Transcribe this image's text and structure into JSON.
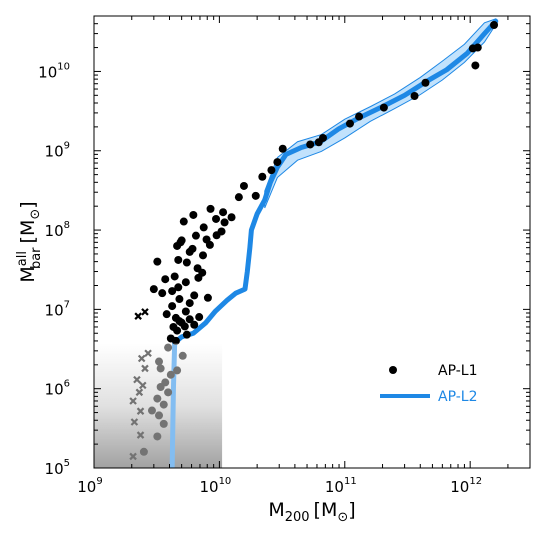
{
  "chart_data": {
    "type": "scatter",
    "xscale": "log",
    "yscale": "log",
    "xlim": [
      1000000000.0,
      3000000000000.0
    ],
    "ylim": [
      100000.0,
      50000000000.0
    ],
    "xlabel": "M",
    "xlabel_sub": "200",
    "xlabel_unit": "[M",
    "xlabel_unit_sub": "⊙",
    "xlabel_unit_end": "]",
    "ylabel": "M",
    "ylabel_sup": "all",
    "ylabel_sub": "bar",
    "ylabel_unit": "[M",
    "ylabel_unit_sub": "⊙",
    "ylabel_unit_end": "]",
    "x_ticks": [
      {
        "value": 1000000000.0,
        "base": "10",
        "exp": "9"
      },
      {
        "value": 10000000000.0,
        "base": "10",
        "exp": "10"
      },
      {
        "value": 100000000000.0,
        "base": "10",
        "exp": "11"
      },
      {
        "value": 1000000000000.0,
        "base": "10",
        "exp": "12"
      }
    ],
    "y_ticks": [
      {
        "value": 100000.0,
        "base": "10",
        "exp": "5"
      },
      {
        "value": 1000000.0,
        "base": "10",
        "exp": "6"
      },
      {
        "value": 10000000.0,
        "base": "10",
        "exp": "7"
      },
      {
        "value": 100000000.0,
        "base": "10",
        "exp": "8"
      },
      {
        "value": 1000000000.0,
        "base": "10",
        "exp": "9"
      },
      {
        "value": 10000000000.0,
        "base": "10",
        "exp": "10"
      }
    ],
    "shaded_region": {
      "x": [
        1000000000.0,
        10500000000.0
      ],
      "y": [
        100000.0,
        3700000.0
      ]
    },
    "legend": {
      "placement": "bottom-right",
      "entries": [
        {
          "label": "AP-L1",
          "marker": "circle",
          "color": "#000000"
        },
        {
          "label": "AP-L2",
          "marker": "line",
          "color": "#1e88e5"
        }
      ]
    },
    "series": [
      {
        "name": "AP-L1",
        "marker": "circle",
        "color": "#000000",
        "points": [
          [
            2500000000.0,
            160000.0
          ],
          [
            3200000000.0,
            250000.0
          ],
          [
            3600000000.0,
            360000.0
          ],
          [
            3300000000.0,
            460000.0
          ],
          [
            2900000000.0,
            530000.0
          ],
          [
            3600000000.0,
            630000.0
          ],
          [
            3200000000.0,
            750000.0
          ],
          [
            3900000000.0,
            900000.0
          ],
          [
            3400000000.0,
            1050000.0
          ],
          [
            3700000000.0,
            1200000.0
          ],
          [
            4100000000.0,
            1500000.0
          ],
          [
            3400000000.0,
            1800000.0
          ],
          [
            4600000000.0,
            1700000.0
          ],
          [
            3300000000.0,
            2200000.0
          ],
          [
            5100000000.0,
            2600000.0
          ],
          [
            3900000000.0,
            3300000.0
          ],
          [
            4500000000.0,
            4000000.0
          ],
          [
            4100000000.0,
            4300000.0
          ],
          [
            5500000000.0,
            4800000.0
          ],
          [
            4600000000.0,
            5400000.0
          ],
          [
            4300000000.0,
            6000000.0
          ],
          [
            5300000000.0,
            6100000.0
          ],
          [
            6300000000.0,
            6400000.0
          ],
          [
            5000000000.0,
            6800000.0
          ],
          [
            4800000000.0,
            7100000.0
          ],
          [
            4500000000.0,
            7800000.0
          ],
          [
            5800000000.0,
            7500000.0
          ],
          [
            6900000000.0,
            8000000.0
          ],
          [
            3800000000.0,
            8700000.0
          ],
          [
            5400000000.0,
            9400000.0
          ],
          [
            4200000000.0,
            11000000.0
          ],
          [
            5800000000.0,
            12000000.0
          ],
          [
            4800000000.0,
            13500000.0
          ],
          [
            6300000000.0,
            15000000.0
          ],
          [
            3500000000.0,
            16000000.0
          ],
          [
            4200000000.0,
            17000000.0
          ],
          [
            8100000000.0,
            14000000.0
          ],
          [
            3000000000.0,
            18000000.0
          ],
          [
            4700000000.0,
            19000000.0
          ],
          [
            5400000000.0,
            22000000.0
          ],
          [
            6800000000.0,
            25000000.0
          ],
          [
            7300000000.0,
            29000000.0
          ],
          [
            3700000000.0,
            24000000.0
          ],
          [
            4400000000.0,
            26000000.0
          ],
          [
            6700000000.0,
            33000000.0
          ],
          [
            5500000000.0,
            39000000.0
          ],
          [
            4700000000.0,
            42000000.0
          ],
          [
            3200000000.0,
            40000000.0
          ],
          [
            7400000000.0,
            48000000.0
          ],
          [
            5800000000.0,
            53000000.0
          ],
          [
            6100000000.0,
            58000000.0
          ],
          [
            4600000000.0,
            63000000.0
          ],
          [
            8400000000.0,
            65000000.0
          ],
          [
            4900000000.0,
            70000000.0
          ],
          [
            5000000000.0,
            74000000.0
          ],
          [
            7900000000.0,
            76000000.0
          ],
          [
            6500000000.0,
            85000000.0
          ],
          [
            9500000000.0,
            86000000.0
          ],
          [
            10400000000.0,
            96000000.0
          ],
          [
            7500000000.0,
            108000000.0
          ],
          [
            11000000000.0,
            125000000.0
          ],
          [
            5200000000.0,
            128000000.0
          ],
          [
            9400000000.0,
            138000000.0
          ],
          [
            12500000000.0,
            145000000.0
          ],
          [
            6200000000.0,
            155000000.0
          ],
          [
            10700000000.0,
            168000000.0
          ],
          [
            8500000000.0,
            185000000.0
          ],
          [
            14300000000.0,
            260000000.0
          ],
          [
            19500000000.0,
            270000000.0
          ],
          [
            15700000000.0,
            360000000.0
          ],
          [
            22000000000.0,
            470000000.0
          ],
          [
            26000000000.0,
            570000000.0
          ],
          [
            29000000000.0,
            720000000.0
          ],
          [
            32000000000.0,
            1060000000.0
          ],
          [
            53000000000.0,
            1200000000.0
          ],
          [
            62000000000.0,
            1280000000.0
          ],
          [
            67000000000.0,
            1450000000.0
          ],
          [
            110000000000.0,
            2200000000.0
          ],
          [
            130000000000.0,
            2700000000.0
          ],
          [
            205000000000.0,
            3500000000.0
          ],
          [
            360000000000.0,
            4900000000.0
          ],
          [
            440000000000.0,
            7200000000.0
          ],
          [
            1050000000000.0,
            19500000000.0
          ],
          [
            1150000000000.0,
            20000000000.0
          ],
          [
            1100000000000.0,
            11900000000.0
          ],
          [
            1550000000000.0,
            38500000000.0
          ]
        ]
      },
      {
        "name": "AP-L1 (crosses)",
        "marker": "x",
        "color": "#000000",
        "points": [
          [
            2050000000.0,
            140000.0
          ],
          [
            2350000000.0,
            260000.0
          ],
          [
            2100000000.0,
            380000.0
          ],
          [
            2350000000.0,
            520000.0
          ],
          [
            2050000000.0,
            700000.0
          ],
          [
            2300000000.0,
            900000.0
          ],
          [
            2450000000.0,
            1100000.0
          ],
          [
            2200000000.0,
            1300000.0
          ],
          [
            2550000000.0,
            1800000.0
          ],
          [
            2400000000.0,
            2400000.0
          ],
          [
            2700000000.0,
            2800000.0
          ],
          [
            2250000000.0,
            8200000.0
          ],
          [
            2550000000.0,
            9300000.0
          ]
        ]
      },
      {
        "name": "AP-L2",
        "marker": "line",
        "color": "#1e88e5",
        "points": [
          [
            4200000000.0,
            100000.0
          ],
          [
            4300000000.0,
            1000000.0
          ],
          [
            4400000000.0,
            3800000.0
          ],
          [
            5000000000.0,
            4500000.0
          ],
          [
            6200000000.0,
            5000000.0
          ],
          [
            7800000000.0,
            6800000.0
          ],
          [
            9300000000.0,
            9500000.0
          ],
          [
            11500000000.0,
            13000000.0
          ],
          [
            13500000000.0,
            16000000.0
          ],
          [
            16000000000.0,
            18000000.0
          ],
          [
            16700000000.0,
            30000000.0
          ],
          [
            17500000000.0,
            60000000.0
          ],
          [
            18000000000.0,
            100000000.0
          ],
          [
            20000000000.0,
            160000000.0
          ],
          [
            23000000000.0,
            240000000.0
          ],
          [
            25500000000.0,
            400000000.0
          ],
          [
            29000000000.0,
            620000000.0
          ],
          [
            34000000000.0,
            900000000.0
          ],
          [
            45000000000.0,
            1100000000.0
          ],
          [
            64000000000.0,
            1300000000.0
          ],
          [
            90000000000.0,
            1900000000.0
          ],
          [
            130000000000.0,
            2600000000.0
          ],
          [
            200000000000.0,
            3600000000.0
          ],
          [
            300000000000.0,
            5000000000.0
          ],
          [
            450000000000.0,
            7500000000.0
          ],
          [
            650000000000.0,
            10500000000.0
          ],
          [
            950000000000.0,
            17000000000.0
          ],
          [
            1300000000000.0,
            30000000000.0
          ],
          [
            1600000000000.0,
            43000000000.0
          ]
        ],
        "band_upper": [
          [
            23000000000.0,
            310000000.0
          ],
          [
            29000000000.0,
            820000000.0
          ],
          [
            42000000000.0,
            1300000000.0
          ],
          [
            65000000000.0,
            1600000000.0
          ],
          [
            100000000000.0,
            2500000000.0
          ],
          [
            160000000000.0,
            3600000000.0
          ],
          [
            250000000000.0,
            5200000000.0
          ],
          [
            400000000000.0,
            8400000000.0
          ],
          [
            600000000000.0,
            13500000000.0
          ],
          [
            900000000000.0,
            22000000000.0
          ],
          [
            1300000000000.0,
            41000000000.0
          ],
          [
            1600000000000.0,
            46000000000.0
          ]
        ],
        "band_lower": [
          [
            23000000000.0,
            190000000.0
          ],
          [
            29000000000.0,
            460000000.0
          ],
          [
            42000000000.0,
            760000000.0
          ],
          [
            65000000000.0,
            980000000.0
          ],
          [
            100000000000.0,
            1450000000.0
          ],
          [
            160000000000.0,
            2350000000.0
          ],
          [
            250000000000.0,
            3400000000.0
          ],
          [
            400000000000.0,
            5100000000.0
          ],
          [
            600000000000.0,
            7800000000.0
          ],
          [
            900000000000.0,
            13000000000.0
          ],
          [
            1300000000000.0,
            23500000000.0
          ],
          [
            1600000000000.0,
            39000000000.0
          ]
        ]
      }
    ]
  }
}
